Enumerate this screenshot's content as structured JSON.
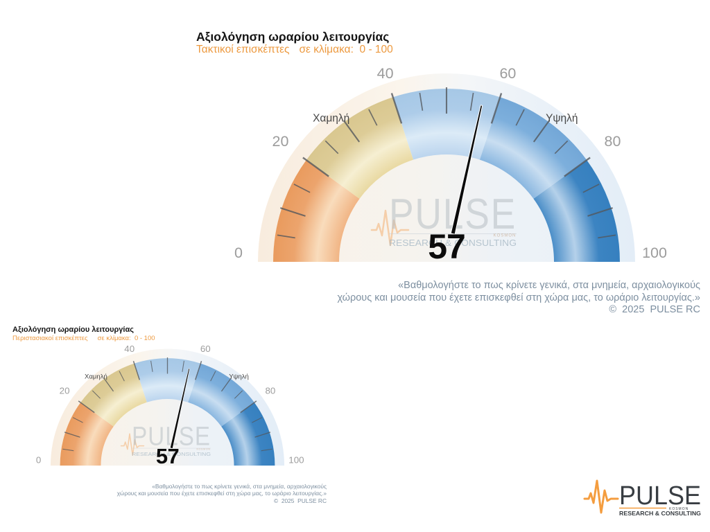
{
  "branding": {
    "brand": "PULSE",
    "tagline": "RESEARCH & CONSULTING",
    "mark": "KOSMON"
  },
  "colors": {
    "subtitle_orange": "#ed9a40",
    "caption_gray": "#7d8fa0",
    "axis_label_gray": "#9c9c9c",
    "zone_label_gray": "#474747",
    "tick_gray": "#54585c",
    "needle_black": "#0a0a0a",
    "logo_orange": "#f49d3f",
    "logo_dark": "#383d42"
  },
  "chart_data": [
    {
      "type": "gauge",
      "title": "Αξιολόγηση ωραρίου λειτουργίας",
      "subtitle_series": "Τακτικοί επισκέπτες",
      "subtitle_scale": "σε κλίμακα:  0 - 100",
      "value": 57,
      "min": 0,
      "max": 100,
      "axis_ticks": [
        0,
        20,
        40,
        60,
        80,
        100
      ],
      "minor_tick_step": 5,
      "major_tick_step": 10,
      "zone_low_label": "Χαμηλή",
      "zone_high_label": "Υψηλή",
      "bands": [
        {
          "from": 0,
          "to": 20,
          "inner": "#f1b585",
          "mid": "#f9dcbc",
          "outer": "#eca46d",
          "edge": "#e99b5e"
        },
        {
          "from": 20,
          "to": 40,
          "inner": "#e9d9a2",
          "mid": "#f6efd2",
          "outer": "#ddcc97",
          "edge": "#d9c78f"
        },
        {
          "from": 40,
          "to": 60,
          "inner": "#bcd5ee",
          "mid": "#dcebf7",
          "outer": "#adcce9",
          "edge": "#a6c8e6"
        },
        {
          "from": 60,
          "to": 80,
          "inner": "#8ab7e0",
          "mid": "#c9def1",
          "outer": "#7dafdc",
          "edge": "#73a7d7"
        },
        {
          "from": 80,
          "to": 100,
          "inner": "#4b8ec8",
          "mid": "#b5d1ea",
          "outer": "#3c84c2",
          "edge": "#3680bf"
        }
      ],
      "caption": [
        "«Βαθμολογήστε το πως κρίνετε γενικά, στα μνημεία, αρχαιολογικούς",
        "χώρους και μουσεία που έχετε επισκεφθεί στη χώρα μας, το ωράριο λειτουργίας.»",
        "©  2025  PULSE RC"
      ]
    },
    {
      "type": "gauge",
      "title": "Αξιολόγηση ωραρίου λειτουργίας",
      "subtitle_series": "Περιστασιακοί επισκέπτες",
      "subtitle_scale": "σε κλίμακα:  0 - 100",
      "value": 57,
      "min": 0,
      "max": 100,
      "axis_ticks": [
        0,
        20,
        40,
        60,
        80,
        100
      ],
      "minor_tick_step": 5,
      "major_tick_step": 10,
      "zone_low_label": "Χαμηλή",
      "zone_high_label": "Υψηλή",
      "bands": [
        {
          "from": 0,
          "to": 20,
          "inner": "#f1b585",
          "mid": "#f9dcbc",
          "outer": "#eca46d",
          "edge": "#e99b5e"
        },
        {
          "from": 20,
          "to": 40,
          "inner": "#e9d9a2",
          "mid": "#f6efd2",
          "outer": "#ddcc97",
          "edge": "#d9c78f"
        },
        {
          "from": 40,
          "to": 60,
          "inner": "#bcd5ee",
          "mid": "#dcebf7",
          "outer": "#adcce9",
          "edge": "#a6c8e6"
        },
        {
          "from": 60,
          "to": 80,
          "inner": "#8ab7e0",
          "mid": "#c9def1",
          "outer": "#7dafdc",
          "edge": "#73a7d7"
        },
        {
          "from": 80,
          "to": 100,
          "inner": "#4b8ec8",
          "mid": "#b5d1ea",
          "outer": "#3c84c2",
          "edge": "#3680bf"
        }
      ],
      "caption": [
        "«Βαθμολογήστε το πως κρίνετε γενικά, στα μνημεία, αρχαιολογικούς",
        "χώρους και μουσεία που έχετε επισκεφθεί στη χώρα μας, το ωράριο λειτουργίας.»",
        "©  2025  PULSE RC"
      ]
    }
  ]
}
